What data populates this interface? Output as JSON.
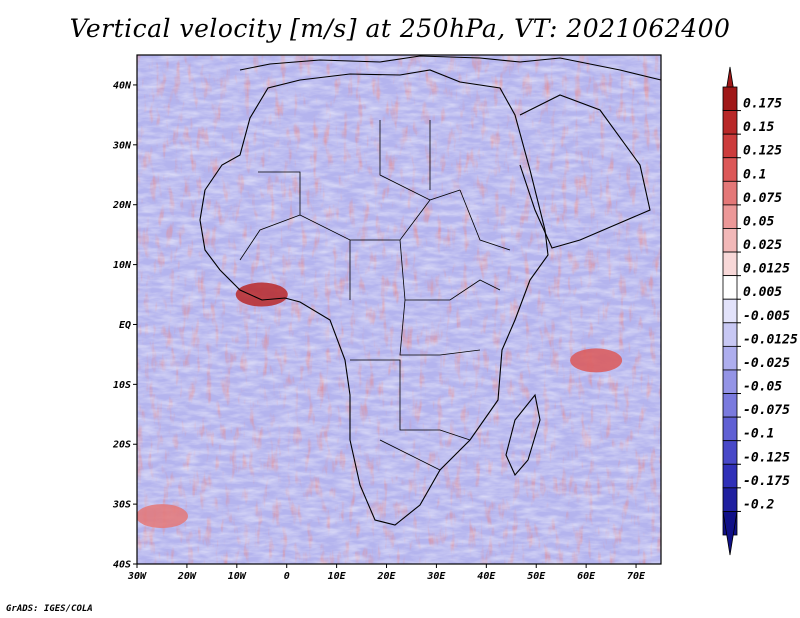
{
  "title": "Vertical velocity [m/s] at 250hPa, VT: 2021062400",
  "footer": "GrADS: IGES/COLA",
  "map": {
    "lon_range": [
      -30,
      75
    ],
    "lat_range": [
      -40,
      45
    ],
    "lat_ticks": [
      {
        "value": 40,
        "label": "40N"
      },
      {
        "value": 30,
        "label": "30N"
      },
      {
        "value": 20,
        "label": "20N"
      },
      {
        "value": 10,
        "label": "10N"
      },
      {
        "value": 0,
        "label": "EQ"
      },
      {
        "value": -10,
        "label": "10S"
      },
      {
        "value": -20,
        "label": "20S"
      },
      {
        "value": -30,
        "label": "30S"
      },
      {
        "value": -40,
        "label": "40S"
      }
    ],
    "lon_ticks": [
      {
        "value": -30,
        "label": "30W"
      },
      {
        "value": -20,
        "label": "20W"
      },
      {
        "value": -10,
        "label": "10W"
      },
      {
        "value": 0,
        "label": "0"
      },
      {
        "value": 10,
        "label": "10E"
      },
      {
        "value": 20,
        "label": "20E"
      },
      {
        "value": 30,
        "label": "30E"
      },
      {
        "value": 40,
        "label": "40E"
      },
      {
        "value": 50,
        "label": "50E"
      },
      {
        "value": 60,
        "label": "60E"
      },
      {
        "value": 70,
        "label": "70E"
      }
    ]
  },
  "colorbar": {
    "levels": [
      "0.175",
      "0.15",
      "0.125",
      "0.1",
      "0.075",
      "0.05",
      "0.025",
      "0.0125",
      "0.005",
      "-0.005",
      "-0.0125",
      "-0.025",
      "-0.05",
      "-0.075",
      "-0.1",
      "-0.125",
      "-0.175",
      "-0.2"
    ],
    "colors": [
      "#a01818",
      "#b82828",
      "#cc3c3c",
      "#dc5858",
      "#e47878",
      "#ec9898",
      "#f2b8b8",
      "#f8d8d8",
      "#ffffff",
      "#e2e2fa",
      "#c8c8f4",
      "#aeaeee",
      "#9494e6",
      "#7a7ade",
      "#6060d4",
      "#4848c8",
      "#3030b8",
      "#2020a0",
      "#101088"
    ]
  },
  "hotspots": [
    {
      "name": "gulf-of-guinea",
      "lon": -5,
      "lat": 5,
      "value": 0.15
    },
    {
      "name": "indian-ocean",
      "lon": 62,
      "lat": -6,
      "value": 0.1
    },
    {
      "name": "south-atlantic",
      "lon": -25,
      "lat": -32,
      "value": 0.075
    }
  ]
}
